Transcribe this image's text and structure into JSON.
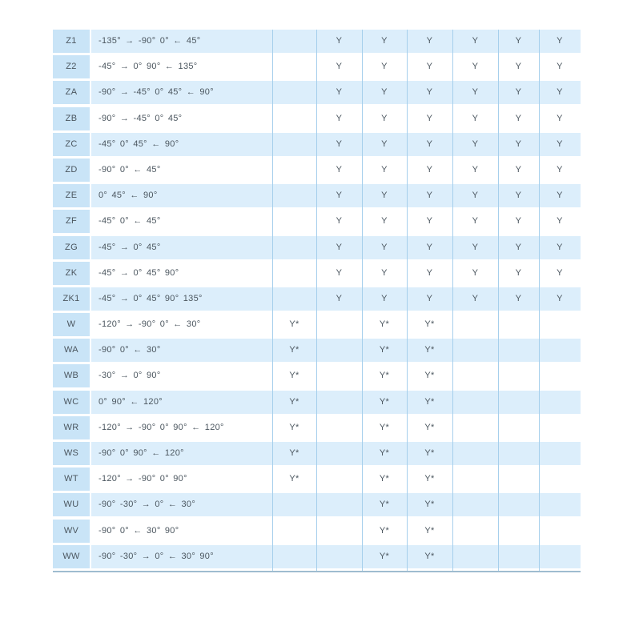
{
  "table": {
    "colors": {
      "stripe": "#dceefb",
      "code_cell": "#c9e4f7",
      "grid_line": "#a6cfec",
      "bottom_border": "#9fbcd0",
      "text": "#4b565f"
    },
    "rows": [
      {
        "code": "Z1",
        "angles": "-135° → -90° 0° ← 45°",
        "cells": [
          "",
          "Y",
          "Y",
          "Y",
          "Y",
          "Y",
          "Y"
        ]
      },
      {
        "code": "Z2",
        "angles": "-45° → 0° 90° ← 135°",
        "cells": [
          "",
          "Y",
          "Y",
          "Y",
          "Y",
          "Y",
          "Y"
        ]
      },
      {
        "code": "ZA",
        "angles": "-90° → -45° 0° 45° ← 90°",
        "cells": [
          "",
          "Y",
          "Y",
          "Y",
          "Y",
          "Y",
          "Y"
        ]
      },
      {
        "code": "ZB",
        "angles": "-90° → -45° 0° 45°",
        "cells": [
          "",
          "Y",
          "Y",
          "Y",
          "Y",
          "Y",
          "Y"
        ]
      },
      {
        "code": "ZC",
        "angles": "-45° 0° 45° ← 90°",
        "cells": [
          "",
          "Y",
          "Y",
          "Y",
          "Y",
          "Y",
          "Y"
        ]
      },
      {
        "code": "ZD",
        "angles": "-90° 0° ← 45°",
        "cells": [
          "",
          "Y",
          "Y",
          "Y",
          "Y",
          "Y",
          "Y"
        ]
      },
      {
        "code": "ZE",
        "angles": "0° 45° ← 90°",
        "cells": [
          "",
          "Y",
          "Y",
          "Y",
          "Y",
          "Y",
          "Y"
        ]
      },
      {
        "code": "ZF",
        "angles": "-45° 0° ← 45°",
        "cells": [
          "",
          "Y",
          "Y",
          "Y",
          "Y",
          "Y",
          "Y"
        ]
      },
      {
        "code": "ZG",
        "angles": "-45° → 0° 45°",
        "cells": [
          "",
          "Y",
          "Y",
          "Y",
          "Y",
          "Y",
          "Y"
        ]
      },
      {
        "code": "ZK",
        "angles": "-45° → 0° 45° 90°",
        "cells": [
          "",
          "Y",
          "Y",
          "Y",
          "Y",
          "Y",
          "Y"
        ]
      },
      {
        "code": "ZK1",
        "angles": "-45° → 0° 45° 90° 135°",
        "cells": [
          "",
          "Y",
          "Y",
          "Y",
          "Y",
          "Y",
          "Y"
        ]
      },
      {
        "code": "W",
        "angles": "-120° → -90° 0° ← 30°",
        "cells": [
          "Y*",
          "",
          "Y*",
          "Y*",
          "",
          "",
          ""
        ]
      },
      {
        "code": "WA",
        "angles": "-90° 0° ← 30°",
        "cells": [
          "Y*",
          "",
          "Y*",
          "Y*",
          "",
          "",
          ""
        ]
      },
      {
        "code": "WB",
        "angles": "-30° → 0° 90°",
        "cells": [
          "Y*",
          "",
          "Y*",
          "Y*",
          "",
          "",
          ""
        ]
      },
      {
        "code": "WC",
        "angles": "0° 90° ← 120°",
        "cells": [
          "Y*",
          "",
          "Y*",
          "Y*",
          "",
          "",
          ""
        ]
      },
      {
        "code": "WR",
        "angles": "-120° → -90° 0° 90° ← 120°",
        "cells": [
          "Y*",
          "",
          "Y*",
          "Y*",
          "",
          "",
          ""
        ]
      },
      {
        "code": "WS",
        "angles": "-90° 0° 90° ← 120°",
        "cells": [
          "Y*",
          "",
          "Y*",
          "Y*",
          "",
          "",
          ""
        ]
      },
      {
        "code": "WT",
        "angles": "-120° → -90° 0° 90°",
        "cells": [
          "Y*",
          "",
          "Y*",
          "Y*",
          "",
          "",
          ""
        ]
      },
      {
        "code": "WU",
        "angles": "-90° -30° → 0° ← 30°",
        "cells": [
          "",
          "",
          "Y*",
          "Y*",
          "",
          "",
          ""
        ]
      },
      {
        "code": "WV",
        "angles": "-90° 0° ← 30° 90°",
        "cells": [
          "",
          "",
          "Y*",
          "Y*",
          "",
          "",
          ""
        ]
      },
      {
        "code": "WW",
        "angles": "-90° -30° → 0° ← 30° 90°",
        "cells": [
          "",
          "",
          "Y*",
          "Y*",
          "",
          "",
          ""
        ]
      }
    ],
    "grid_line_offsets": [
      274,
      329,
      386,
      442,
      499,
      556,
      607
    ]
  }
}
